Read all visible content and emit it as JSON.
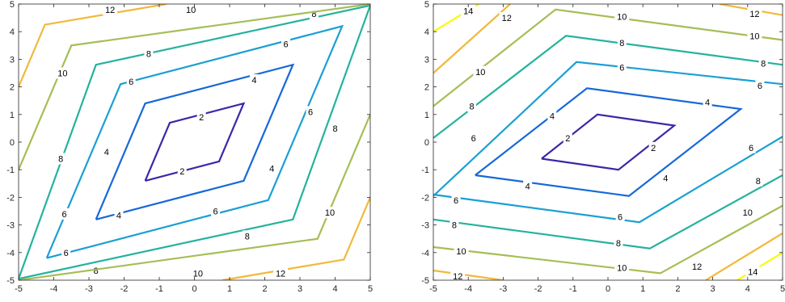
{
  "chart_data": [
    {
      "type": "contour",
      "xlim": [
        -5,
        5
      ],
      "ylim": [
        -5,
        5
      ],
      "xticks": [
        -5,
        -4,
        -3,
        -2,
        -1,
        0,
        1,
        2,
        3,
        4,
        5
      ],
      "yticks": [
        -5,
        -4,
        -3,
        -2,
        -1,
        0,
        1,
        2,
        3,
        4,
        5
      ],
      "levels": [
        2,
        4,
        6,
        8,
        10,
        12,
        14
      ],
      "colormap": "parula",
      "contours": [
        {
          "level": 2,
          "color": "#3e26a8",
          "points": [
            [
              -1.4,
              -1.4
            ],
            [
              -0.7,
              0.7
            ],
            [
              1.4,
              1.4
            ],
            [
              0.7,
              -0.7
            ],
            [
              -1.4,
              -1.4
            ]
          ],
          "labels": [
            [
              0.2,
              0.9
            ],
            [
              -0.35,
              -1.05
            ]
          ]
        },
        {
          "level": 4,
          "color": "#1668d9",
          "points": [
            [
              -2.8,
              -2.8
            ],
            [
              -1.4,
              1.4
            ],
            [
              2.8,
              2.8
            ],
            [
              1.4,
              -1.4
            ],
            [
              -2.8,
              -2.8
            ]
          ],
          "labels": [
            [
              1.7,
              2.25
            ],
            [
              -2.5,
              -0.35
            ],
            [
              -2.15,
              -2.65
            ],
            [
              2.2,
              -0.95
            ]
          ]
        },
        {
          "level": 6,
          "color": "#1a9fd4",
          "points": [
            [
              -4.2,
              -4.2
            ],
            [
              -2.1,
              2.1
            ],
            [
              4.2,
              4.2
            ],
            [
              2.1,
              -2.1
            ],
            [
              -4.2,
              -4.2
            ]
          ],
          "labels": [
            [
              2.6,
              3.55
            ],
            [
              -1.8,
              2.2
            ],
            [
              -3.7,
              -2.6
            ],
            [
              -3.65,
              -4.0
            ],
            [
              0.6,
              -2.5
            ],
            [
              3.3,
              1.1
            ]
          ]
        },
        {
          "level": 8,
          "color": "#25b29e",
          "points": [
            [
              -5,
              -4.95
            ],
            [
              -2.8,
              2.8
            ],
            [
              5,
              4.95
            ],
            [
              2.8,
              -2.8
            ],
            [
              -5,
              -4.95
            ]
          ],
          "labels": [
            [
              -1.3,
              3.2
            ],
            [
              3.4,
              4.65
            ],
            [
              -3.8,
              -0.6
            ],
            [
              -2.8,
              -4.65
            ],
            [
              1.5,
              -3.4
            ],
            [
              4.0,
              0.5
            ]
          ]
        },
        {
          "level": 10,
          "color": "#a5be55",
          "points": [
            [
              -5,
              -1
            ],
            [
              -3.5,
              3.5
            ],
            [
              5,
              5
            ],
            [
              3.5,
              -3.5
            ],
            [
              -5,
              -5
            ],
            [
              5,
              5
            ]
          ],
          "contourPath": [
            [
              -5,
              -1
            ],
            [
              -3.5,
              3.5
            ],
            [
              5,
              5
            ]
          ],
          "contourPath2": [
            [
              5,
              1
            ],
            [
              3.5,
              -3.5
            ],
            [
              -5,
              -5
            ]
          ],
          "labels": [
            [
              -0.1,
              4.8
            ],
            [
              -3.75,
              2.5
            ],
            [
              0.1,
              -4.75
            ],
            [
              3.85,
              -2.55
            ]
          ]
        },
        {
          "level": 12,
          "color": "#f1b93a",
          "contourPath": [
            [
              -5,
              2
            ],
            [
              -4.25,
              4.25
            ],
            [
              -0.8,
              5
            ]
          ],
          "contourPath2": [
            [
              5,
              -2
            ],
            [
              4.25,
              -4.25
            ],
            [
              0.8,
              -5
            ]
          ],
          "labels": [
            [
              -2.4,
              4.8
            ],
            [
              2.45,
              -4.75
            ]
          ]
        }
      ],
      "corner_fill": "#f9fb0e"
    },
    {
      "type": "contour",
      "xlim": [
        -5,
        5
      ],
      "ylim": [
        -5,
        5
      ],
      "xticks": [
        -5,
        -4,
        -3,
        -2,
        -1,
        0,
        1,
        2,
        3,
        4,
        5
      ],
      "yticks": [
        -5,
        -4,
        -3,
        -2,
        -1,
        0,
        1,
        2,
        3,
        4,
        5
      ],
      "levels": [
        2,
        4,
        6,
        8,
        10,
        12,
        14
      ],
      "colormap": "parula",
      "contours": [
        {
          "level": 2,
          "color": "#3e26a8",
          "points": [
            [
              -1.9,
              -0.6
            ],
            [
              -0.3,
              1.0
            ],
            [
              1.9,
              0.6
            ],
            [
              0.3,
              -1.0
            ],
            [
              -1.9,
              -0.6
            ]
          ],
          "labels": [
            [
              -1.15,
              0.15
            ],
            [
              1.3,
              -0.2
            ]
          ]
        },
        {
          "level": 4,
          "color": "#1668d9",
          "points": [
            [
              -3.8,
              -1.2
            ],
            [
              -0.6,
              1.95
            ],
            [
              3.8,
              1.2
            ],
            [
              0.6,
              -1.95
            ],
            [
              -3.8,
              -1.2
            ]
          ],
          "labels": [
            [
              -1.6,
              0.95
            ],
            [
              2.85,
              1.45
            ],
            [
              -2.3,
              -1.6
            ],
            [
              1.65,
              -1.3
            ]
          ]
        },
        {
          "level": 6,
          "color": "#1a9fd4",
          "contourPath": [
            [
              -5,
              -1.95
            ],
            [
              -0.9,
              2.9
            ],
            [
              5,
              2.1
            ]
          ],
          "contourPath2": [
            [
              5,
              0.2
            ],
            [
              0.9,
              -2.9
            ],
            [
              -5,
              -1.9
            ]
          ],
          "labels": [
            [
              0.4,
              2.7
            ],
            [
              4.35,
              2.05
            ],
            [
              -3.85,
              0.15
            ],
            [
              -4.35,
              -2.1
            ],
            [
              0.35,
              -2.7
            ],
            [
              4.1,
              -0.2
            ]
          ]
        },
        {
          "level": 8,
          "color": "#25b29e",
          "contourPath": [
            [
              -5,
              0.15
            ],
            [
              -1.2,
              3.85
            ],
            [
              5,
              2.8
            ]
          ],
          "contourPath2": [
            [
              5,
              -1.2
            ],
            [
              1.2,
              -3.85
            ],
            [
              -5,
              -2.8
            ]
          ],
          "labels": [
            [
              0.4,
              3.6
            ],
            [
              4.45,
              2.85
            ],
            [
              -3.9,
              1.3
            ],
            [
              -4.4,
              -3.0
            ],
            [
              0.3,
              -3.65
            ],
            [
              4.3,
              -1.4
            ]
          ]
        },
        {
          "level": 10,
          "color": "#a5be55",
          "contourPath": [
            [
              -5,
              1.3
            ],
            [
              -1.5,
              4.8
            ],
            [
              5,
              3.7
            ]
          ],
          "contourPath2": [
            [
              5,
              -2.3
            ],
            [
              1.5,
              -4.75
            ],
            [
              -5,
              -3.8
            ]
          ],
          "labels": [
            [
              0.4,
              4.55
            ],
            [
              4.2,
              3.85
            ],
            [
              -3.65,
              2.55
            ],
            [
              -4.2,
              -3.95
            ],
            [
              0.4,
              -4.55
            ],
            [
              4.0,
              -2.55
            ]
          ]
        },
        {
          "level": 12,
          "color": "#f1b93a",
          "contourPath": [
            [
              -5,
              2.5
            ],
            [
              -2.8,
              5
            ]
          ],
          "contourPath2": [
            [
              3.2,
              5
            ],
            [
              5,
              4.6
            ]
          ],
          "contourPath3": [
            [
              5,
              -3.3
            ],
            [
              2.8,
              -5
            ]
          ],
          "contourPath4": [
            [
              -5,
              -4.65
            ],
            [
              -3.0,
              -5
            ]
          ],
          "labels": [
            [
              -2.9,
              4.5
            ],
            [
              4.2,
              4.65
            ],
            [
              2.55,
              -4.5
            ],
            [
              -4.3,
              -4.85
            ]
          ]
        },
        {
          "level": 14,
          "color": "#f9fb0e",
          "contourPath": [
            [
              -5,
              4.0
            ],
            [
              -3.7,
              5
            ]
          ],
          "contourPath2": [
            [
              5,
              -4.0
            ],
            [
              3.7,
              -5
            ]
          ],
          "labels": [
            [
              -4.0,
              4.75
            ],
            [
              4.15,
              -4.7
            ]
          ]
        }
      ]
    }
  ]
}
